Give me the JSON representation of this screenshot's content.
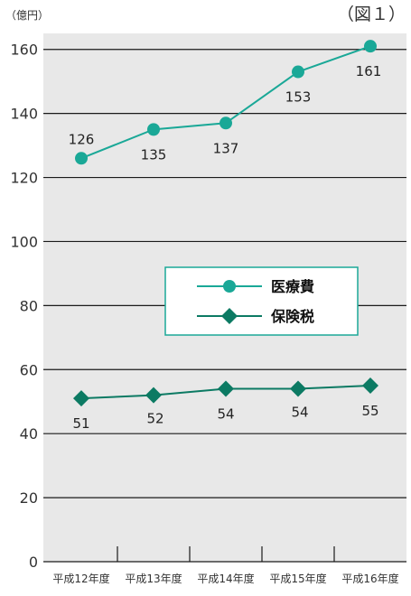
{
  "chart_data": {
    "type": "line",
    "figure_label": "（図１）",
    "unit_label": "（億円）",
    "categories": [
      "平成12年度",
      "平成13年度",
      "平成14年度",
      "平成15年度",
      "平成16年度"
    ],
    "y_ticks": [
      0,
      20,
      40,
      60,
      80,
      100,
      120,
      140,
      160
    ],
    "ylim": [
      0,
      165
    ],
    "grid": true,
    "legend_position": "center-right",
    "series": [
      {
        "name": "医療費",
        "values": [
          126,
          135,
          137,
          153,
          161
        ],
        "marker": "circle",
        "color": "#1aa897"
      },
      {
        "name": "保険税",
        "values": [
          51,
          52,
          54,
          54,
          55
        ],
        "marker": "diamond",
        "color": "#0c7a63"
      }
    ]
  }
}
